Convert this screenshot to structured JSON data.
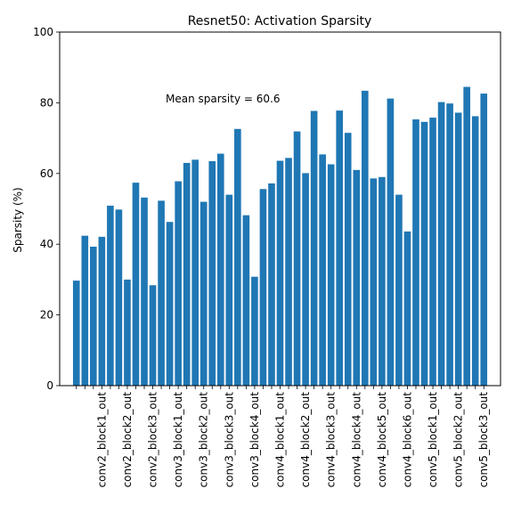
{
  "chart_data": {
    "type": "bar",
    "title": "Resnet50: Activation Sparsity",
    "xlabel": "",
    "ylabel": "Sparsity (%)",
    "ylim": [
      0,
      100
    ],
    "yticks": [
      0,
      20,
      40,
      60,
      80,
      100
    ],
    "grid": false,
    "annotation": "Mean sparsity = 60.6",
    "bar_color": "#1f77b4",
    "values": [
      29.7,
      42.4,
      39.3,
      42.1,
      50.9,
      49.8,
      30.0,
      57.4,
      53.2,
      28.4,
      52.3,
      46.3,
      57.8,
      63.0,
      63.9,
      52.0,
      63.5,
      65.6,
      54.0,
      72.6,
      48.2,
      30.8,
      55.6,
      57.2,
      63.6,
      64.4,
      71.9,
      60.1,
      77.7,
      65.4,
      62.6,
      77.8,
      71.5,
      61.0,
      83.4,
      58.6,
      59.0,
      81.2,
      54.0,
      43.6,
      75.3,
      74.6,
      75.8,
      80.2,
      79.8,
      77.2,
      84.5,
      76.2,
      82.6
    ],
    "tick_labels": [
      "conv2_block1_out",
      "conv2_block2_out",
      "conv2_block3_out",
      "conv3_block1_out",
      "conv3_block2_out",
      "conv3_block3_out",
      "conv3_block4_out",
      "conv4_block1_out",
      "conv4_block2_out",
      "conv4_block3_out",
      "conv4_block4_out",
      "conv4_block5_out",
      "conv4_block6_out",
      "conv5_block1_out",
      "conv5_block2_out",
      "conv5_block3_out"
    ],
    "tick_label_positions": [
      3,
      6,
      9,
      12,
      15,
      18,
      21,
      24,
      27,
      30,
      33,
      36,
      39,
      42,
      45,
      48
    ]
  }
}
